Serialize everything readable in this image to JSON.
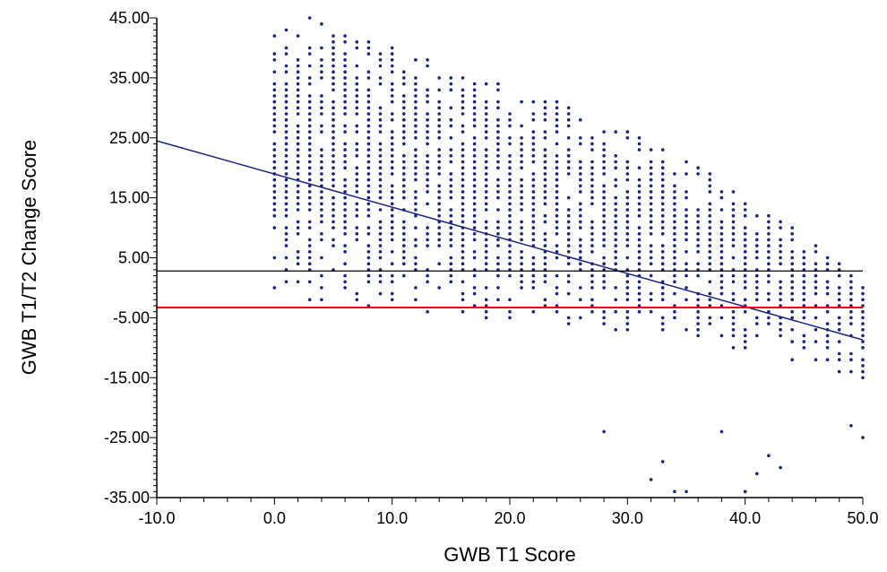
{
  "chart_data": {
    "type": "scatter",
    "xlabel": "GWB T1 Score",
    "ylabel": "GWB T1/T2 Change Score",
    "xlim": [
      -10,
      50
    ],
    "ylim": [
      -35,
      45
    ],
    "x_ticks": [
      "-10.0",
      "0.0",
      "10.0",
      "20.0",
      "30.0",
      "40.0",
      "50.0"
    ],
    "y_ticks": [
      "45.00",
      "35.00",
      "25.00",
      "15.00",
      "5.00",
      "-5.00",
      "-15.00",
      "-25.00",
      "-35.00"
    ],
    "x_minor_step": 2,
    "y_minor_step": 1,
    "points_color": "#1a237e",
    "points_x_range": [
      0,
      50
    ],
    "points_y_min": [
      -1,
      -2,
      -3,
      -4,
      -5,
      -6,
      -7,
      -8,
      -10,
      -12,
      -15
    ],
    "points_y_max": [
      43,
      42,
      40,
      36,
      33,
      30,
      26,
      21,
      15,
      9,
      0
    ],
    "outliers": [
      {
        "x": 3,
        "y": 45
      },
      {
        "x": 4,
        "y": 44
      },
      {
        "x": 12,
        "y": 38
      },
      {
        "x": 32,
        "y": -32
      },
      {
        "x": 34,
        "y": -34
      },
      {
        "x": 35,
        "y": -34
      },
      {
        "x": 40,
        "y": -34
      },
      {
        "x": 41,
        "y": -31
      },
      {
        "x": 42,
        "y": -28
      },
      {
        "x": 43,
        "y": -30
      },
      {
        "x": 50,
        "y": -25
      },
      {
        "x": 49,
        "y": -23
      },
      {
        "x": 33,
        "y": -29
      },
      {
        "x": 28,
        "y": -24
      },
      {
        "x": 38,
        "y": -24
      }
    ],
    "reference_lines": [
      {
        "type": "regression",
        "x1": -10,
        "y1": 24.5,
        "x2": 50,
        "y2": -8.7,
        "color": "#1a237e"
      },
      {
        "type": "horizontal",
        "y": 2.8,
        "color": "#000000"
      },
      {
        "type": "horizontal",
        "y": -3.3,
        "color": "#ff0000"
      }
    ]
  }
}
